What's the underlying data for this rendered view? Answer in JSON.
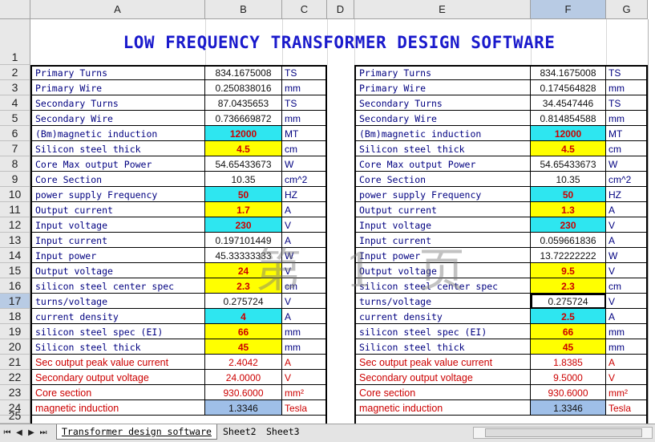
{
  "columns": [
    "A",
    "B",
    "C",
    "D",
    "E",
    "F",
    "G"
  ],
  "title": "LOW FREQUENCY TRANSFORMER DESIGN SOFTWARE",
  "watermark": "第 1 页",
  "left_table": [
    {
      "label": "Primary Turns",
      "value": "834.1675008",
      "unit": "TS",
      "style": "plain",
      "lstyle": "normal"
    },
    {
      "label": "Primary Wire",
      "value": "0.250838016",
      "unit": "mm",
      "style": "plain",
      "lstyle": "normal"
    },
    {
      "label": "Secondary Turns",
      "value": "87.0435653",
      "unit": "TS",
      "style": "plain",
      "lstyle": "normal"
    },
    {
      "label": "Secondary Wire",
      "value": "0.736669872",
      "unit": "mm",
      "style": "plain",
      "lstyle": "normal"
    },
    {
      "label": "(Bm)magnetic induction",
      "value": "12000",
      "unit": "MT",
      "style": "cyan",
      "lstyle": "normal"
    },
    {
      "label": "Silicon steel thick",
      "value": "4.5",
      "unit": "cm",
      "style": "yellow",
      "lstyle": "normal"
    },
    {
      "label": "Core Max output Power",
      "value": "54.65433673",
      "unit": "W",
      "style": "plain",
      "lstyle": "normal"
    },
    {
      "label": "Core Section",
      "value": "10.35",
      "unit": "cm^2",
      "style": "plain",
      "lstyle": "normal"
    },
    {
      "label": "power supply Frequency",
      "value": "50",
      "unit": "HZ",
      "style": "cyan",
      "lstyle": "normal"
    },
    {
      "label": "Output current",
      "value": "1.7",
      "unit": "A",
      "style": "yellow",
      "lstyle": "normal"
    },
    {
      "label": "Input voltage",
      "value": "230",
      "unit": "V",
      "style": "cyan",
      "lstyle": "normal"
    },
    {
      "label": "Input current",
      "value": "0.197101449",
      "unit": "A",
      "style": "plain",
      "lstyle": "normal"
    },
    {
      "label": "Input power",
      "value": "45.33333333",
      "unit": "W",
      "style": "plain",
      "lstyle": "normal"
    },
    {
      "label": "Output voltage",
      "value": "24",
      "unit": "V",
      "style": "yellow",
      "lstyle": "normal"
    },
    {
      "label": "silicon steel center spec",
      "value": "2.3",
      "unit": "cm",
      "style": "yellow",
      "lstyle": "normal"
    },
    {
      "label": "turns/voltage",
      "value": "0.275724",
      "unit": "V",
      "style": "plain",
      "lstyle": "normal"
    },
    {
      "label": "current density",
      "value": "4",
      "unit": "A",
      "style": "cyan",
      "lstyle": "normal"
    },
    {
      "label": "silicon steel spec (EI)",
      "value": "66",
      "unit": "mm",
      "style": "yellow",
      "lstyle": "normal"
    },
    {
      "label": "Silicon steel thick",
      "value": "45",
      "unit": "mm",
      "style": "yellow",
      "lstyle": "normal"
    },
    {
      "label": "Sec output peak value current",
      "value": "2.4042",
      "unit": "A",
      "style": "redv",
      "lstyle": "red"
    },
    {
      "label": "Secondary output voltage",
      "value": "24.0000",
      "unit": "V",
      "style": "redv",
      "lstyle": "red"
    },
    {
      "label": "Core section",
      "value": "930.6000",
      "unit": "mm²",
      "style": "redv",
      "lstyle": "red"
    },
    {
      "label": "magnetic induction",
      "value": "1.3346",
      "unit": "Tesla",
      "style": "blue",
      "lstyle": "red"
    }
  ],
  "right_table": [
    {
      "label": "Primary Turns",
      "value": "834.1675008",
      "unit": "TS",
      "style": "plain",
      "lstyle": "normal"
    },
    {
      "label": "Primary Wire",
      "value": "0.174564828",
      "unit": "mm",
      "style": "plain",
      "lstyle": "normal"
    },
    {
      "label": "Secondary Turns",
      "value": "34.4547446",
      "unit": "TS",
      "style": "plain",
      "lstyle": "normal"
    },
    {
      "label": "Secondary Wire",
      "value": "0.814854588",
      "unit": "mm",
      "style": "plain",
      "lstyle": "normal"
    },
    {
      "label": "(Bm)magnetic induction",
      "value": "12000",
      "unit": "MT",
      "style": "cyan",
      "lstyle": "normal"
    },
    {
      "label": "Silicon steel thick",
      "value": "4.5",
      "unit": "cm",
      "style": "yellow",
      "lstyle": "normal"
    },
    {
      "label": "Core Max output Power",
      "value": "54.65433673",
      "unit": "W",
      "style": "plain",
      "lstyle": "normal"
    },
    {
      "label": "Core Section",
      "value": "10.35",
      "unit": "cm^2",
      "style": "plain",
      "lstyle": "normal"
    },
    {
      "label": "power supply Frequency",
      "value": "50",
      "unit": "HZ",
      "style": "cyan",
      "lstyle": "normal"
    },
    {
      "label": "Output current",
      "value": "1.3",
      "unit": "A",
      "style": "yellow",
      "lstyle": "normal"
    },
    {
      "label": "Input voltage",
      "value": "230",
      "unit": "V",
      "style": "cyan",
      "lstyle": "normal"
    },
    {
      "label": "Input current",
      "value": "0.059661836",
      "unit": "A",
      "style": "plain",
      "lstyle": "normal"
    },
    {
      "label": "Input power",
      "value": "13.72222222",
      "unit": "W",
      "style": "plain",
      "lstyle": "normal"
    },
    {
      "label": "Output voltage",
      "value": "9.5",
      "unit": "V",
      "style": "yellow",
      "lstyle": "normal"
    },
    {
      "label": "silicon steel center spec",
      "value": "2.3",
      "unit": "cm",
      "style": "yellow",
      "lstyle": "normal"
    },
    {
      "label": "turns/voltage",
      "value": "0.275724",
      "unit": "V",
      "style": "plain",
      "lstyle": "normal"
    },
    {
      "label": "current density",
      "value": "2.5",
      "unit": "A",
      "style": "cyan",
      "lstyle": "normal"
    },
    {
      "label": "silicon steel spec (EI)",
      "value": "66",
      "unit": "mm",
      "style": "yellow",
      "lstyle": "normal"
    },
    {
      "label": "Silicon steel thick",
      "value": "45",
      "unit": "mm",
      "style": "yellow",
      "lstyle": "normal"
    },
    {
      "label": "Sec output peak value current",
      "value": "1.8385",
      "unit": "A",
      "style": "redv",
      "lstyle": "red"
    },
    {
      "label": "Secondary output voltage",
      "value": "9.5000",
      "unit": "V",
      "style": "redv",
      "lstyle": "red"
    },
    {
      "label": "Core section",
      "value": "930.6000",
      "unit": "mm²",
      "style": "redv",
      "lstyle": "red"
    },
    {
      "label": "magnetic induction",
      "value": "1.3346",
      "unit": "Tesla",
      "style": "blue",
      "lstyle": "red"
    }
  ],
  "tabs": [
    "Transformer design software",
    "Sheet2",
    "Sheet3"
  ],
  "active_cell": "F17",
  "colors": {
    "cyan": "#2ee6f0",
    "yellow": "#ffff00",
    "blue": "#9fbfe8",
    "title": "#1a1acc",
    "label": "#000080",
    "red": "#cc0000"
  }
}
